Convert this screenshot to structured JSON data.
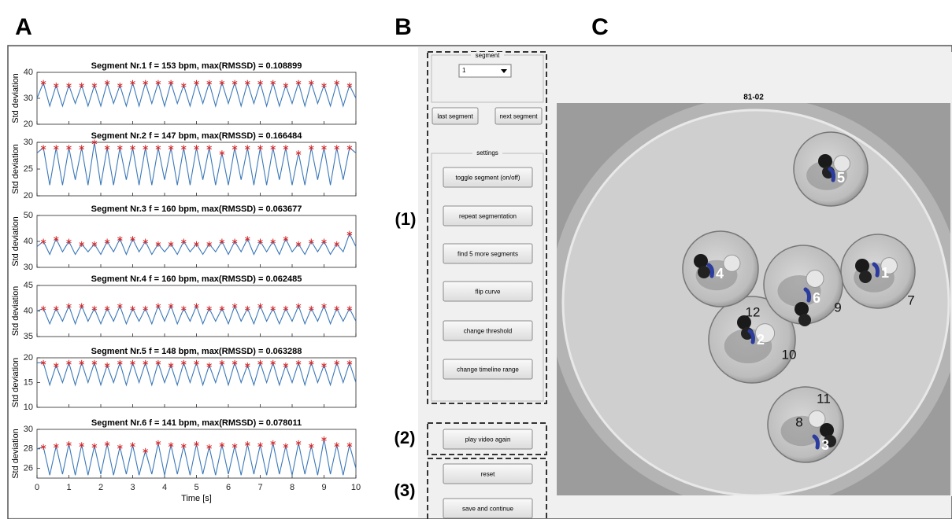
{
  "panel_labels": [
    "A",
    "B",
    "C"
  ],
  "chart_data": [
    {
      "type": "line",
      "title": "Segment Nr.1  f = 153 bpm, max(RMSSD) = 0.108899",
      "ylabel": "Std deviation",
      "color": "#3b78b8",
      "marker_color": "#d62728",
      "xlim": [
        0,
        10
      ],
      "xticks": [
        0,
        1,
        2,
        3,
        4,
        5,
        6,
        7,
        8,
        9,
        10
      ],
      "ylim": [
        20,
        40
      ],
      "yticks": [
        20,
        30,
        40
      ],
      "x": [
        0,
        0.2,
        0.4,
        0.6,
        0.8,
        1,
        1.2,
        1.4,
        1.6,
        1.8,
        2,
        2.2,
        2.4,
        2.6,
        2.8,
        3,
        3.2,
        3.4,
        3.6,
        3.8,
        4,
        4.2,
        4.4,
        4.6,
        4.8,
        5,
        5.2,
        5.4,
        5.6,
        5.8,
        6,
        6.2,
        6.4,
        6.6,
        6.8,
        7,
        7.2,
        7.4,
        7.6,
        7.8,
        8,
        8.2,
        8.4,
        8.6,
        8.8,
        9,
        9.2,
        9.4,
        9.6,
        9.8,
        10
      ],
      "values": [
        30,
        36,
        27,
        35,
        27,
        35,
        28,
        35,
        27,
        35,
        27,
        36,
        28,
        35,
        27,
        36,
        27,
        36,
        28,
        36,
        27,
        36,
        28,
        35,
        27,
        36,
        28,
        36,
        27,
        36,
        28,
        36,
        27,
        36,
        28,
        36,
        27,
        36,
        27,
        35,
        28,
        36,
        27,
        36,
        28,
        35,
        27,
        36,
        27,
        35,
        30
      ]
    },
    {
      "type": "line",
      "title": "Segment Nr.2  f = 147 bpm, max(RMSSD) = 0.166484",
      "ylabel": "Std deviation",
      "color": "#3b78b8",
      "marker_color": "#d62728",
      "xlim": [
        0,
        10
      ],
      "xticks": [
        0,
        1,
        2,
        3,
        4,
        5,
        6,
        7,
        8,
        9,
        10
      ],
      "ylim": [
        20,
        30
      ],
      "yticks": [
        20,
        25,
        30
      ],
      "x": [
        0,
        0.2,
        0.4,
        0.6,
        0.8,
        1,
        1.2,
        1.4,
        1.6,
        1.8,
        2,
        2.2,
        2.4,
        2.6,
        2.8,
        3,
        3.2,
        3.4,
        3.6,
        3.8,
        4,
        4.2,
        4.4,
        4.6,
        4.8,
        5,
        5.2,
        5.4,
        5.6,
        5.8,
        6,
        6.2,
        6.4,
        6.6,
        6.8,
        7,
        7.2,
        7.4,
        7.6,
        7.8,
        8,
        8.2,
        8.4,
        8.6,
        8.8,
        9,
        9.2,
        9.4,
        9.6,
        9.8,
        10
      ],
      "values": [
        28,
        29,
        22,
        29,
        22,
        29,
        23,
        29,
        22,
        30,
        22,
        29,
        22,
        29,
        23,
        29,
        22,
        29,
        22,
        29,
        23,
        29,
        22,
        29,
        22,
        29,
        23,
        29,
        22,
        28,
        22,
        29,
        23,
        29,
        22,
        29,
        22,
        29,
        23,
        29,
        22,
        28,
        22,
        29,
        23,
        29,
        22,
        29,
        23,
        29,
        28
      ]
    },
    {
      "type": "line",
      "title": "Segment Nr.3  f = 160 bpm, max(RMSSD) = 0.063677",
      "ylabel": "Std deviation",
      "color": "#3b78b8",
      "marker_color": "#d62728",
      "xlim": [
        0,
        10
      ],
      "xticks": [
        0,
        1,
        2,
        3,
        4,
        5,
        6,
        7,
        8,
        9,
        10
      ],
      "ylim": [
        30,
        50
      ],
      "yticks": [
        30,
        40,
        50
      ],
      "x": [
        0,
        0.2,
        0.4,
        0.6,
        0.8,
        1,
        1.2,
        1.4,
        1.6,
        1.8,
        2,
        2.2,
        2.4,
        2.6,
        2.8,
        3,
        3.2,
        3.4,
        3.6,
        3.8,
        4,
        4.2,
        4.4,
        4.6,
        4.8,
        5,
        5.2,
        5.4,
        5.6,
        5.8,
        6,
        6.2,
        6.4,
        6.6,
        6.8,
        7,
        7.2,
        7.4,
        7.6,
        7.8,
        8,
        8.2,
        8.4,
        8.6,
        8.8,
        9,
        9.2,
        9.4,
        9.6,
        9.8,
        10
      ],
      "values": [
        38,
        40,
        35,
        41,
        36,
        40,
        35,
        39,
        36,
        39,
        35,
        40,
        36,
        41,
        35,
        41,
        36,
        40,
        35,
        39,
        36,
        39,
        35,
        40,
        36,
        39,
        35,
        39,
        36,
        40,
        35,
        40,
        36,
        41,
        35,
        40,
        36,
        40,
        35,
        41,
        36,
        39,
        35,
        40,
        36,
        40,
        35,
        39,
        36,
        43,
        38
      ]
    },
    {
      "type": "line",
      "title": "Segment Nr.4  f = 160 bpm, max(RMSSD) = 0.062485",
      "ylabel": "Std deviation",
      "color": "#3b78b8",
      "marker_color": "#d62728",
      "xlim": [
        0,
        10
      ],
      "xticks": [
        0,
        1,
        2,
        3,
        4,
        5,
        6,
        7,
        8,
        9,
        10
      ],
      "ylim": [
        35,
        45
      ],
      "yticks": [
        35,
        40,
        45
      ],
      "x": [
        0,
        0.2,
        0.4,
        0.6,
        0.8,
        1,
        1.2,
        1.4,
        1.6,
        1.8,
        2,
        2.2,
        2.4,
        2.6,
        2.8,
        3,
        3.2,
        3.4,
        3.6,
        3.8,
        4,
        4.2,
        4.4,
        4.6,
        4.8,
        5,
        5.2,
        5.4,
        5.6,
        5.8,
        6,
        6.2,
        6.4,
        6.6,
        6.8,
        7,
        7.2,
        7.4,
        7.6,
        7.8,
        8,
        8.2,
        8.4,
        8.6,
        8.8,
        9,
        9.2,
        9.4,
        9.6,
        9.8,
        10
      ],
      "values": [
        40,
        40.5,
        37.5,
        40.5,
        38,
        41,
        37.5,
        41,
        38,
        40.5,
        37.5,
        40.5,
        38,
        41,
        37.5,
        40.5,
        38,
        40.5,
        37.5,
        41,
        38,
        41,
        37.5,
        40.5,
        38,
        41,
        37.5,
        40.5,
        38,
        40.5,
        37.5,
        41,
        38,
        40.5,
        37.5,
        41,
        38,
        40.5,
        37.5,
        40.5,
        38,
        41,
        37.5,
        40.5,
        38,
        41,
        37.5,
        40.5,
        38,
        40.5,
        38
      ]
    },
    {
      "type": "line",
      "title": "Segment Nr.5  f = 148 bpm, max(RMSSD) = 0.063288",
      "ylabel": "Std deviation",
      "color": "#3b78b8",
      "marker_color": "#d62728",
      "xlim": [
        0,
        10
      ],
      "xticks": [
        0,
        1,
        2,
        3,
        4,
        5,
        6,
        7,
        8,
        9,
        10
      ],
      "ylim": [
        10,
        20
      ],
      "yticks": [
        10,
        15,
        20
      ],
      "x": [
        0,
        0.2,
        0.4,
        0.6,
        0.8,
        1,
        1.2,
        1.4,
        1.6,
        1.8,
        2,
        2.2,
        2.4,
        2.6,
        2.8,
        3,
        3.2,
        3.4,
        3.6,
        3.8,
        4,
        4.2,
        4.4,
        4.6,
        4.8,
        5,
        5.2,
        5.4,
        5.6,
        5.8,
        6,
        6.2,
        6.4,
        6.6,
        6.8,
        7,
        7.2,
        7.4,
        7.6,
        7.8,
        8,
        8.2,
        8.4,
        8.6,
        8.8,
        9,
        9.2,
        9.4,
        9.6,
        9.8,
        10
      ],
      "values": [
        19,
        19,
        14.5,
        18.5,
        15,
        19,
        14.5,
        19,
        15,
        19,
        14.5,
        18.5,
        15,
        19,
        14.5,
        19,
        15,
        19,
        14.5,
        19,
        15,
        18.5,
        14.5,
        19,
        15,
        19,
        14.5,
        18.5,
        15,
        19,
        14.5,
        19,
        15,
        18.5,
        14.5,
        19,
        15,
        19,
        14.5,
        18.5,
        15,
        19,
        14.5,
        19,
        15,
        18.5,
        14.5,
        19,
        15,
        19,
        15
      ]
    },
    {
      "type": "line",
      "title": "Segment Nr.6  f = 141 bpm, max(RMSSD) = 0.078011",
      "ylabel": "Std deviation",
      "xlabel": "Time [s]",
      "color": "#3b78b8",
      "marker_color": "#d62728",
      "xlim": [
        0,
        10
      ],
      "xticks": [
        0,
        1,
        2,
        3,
        4,
        5,
        6,
        7,
        8,
        9,
        10
      ],
      "ylim": [
        25,
        30
      ],
      "yticks": [
        26,
        28,
        30
      ],
      "x": [
        0,
        0.2,
        0.4,
        0.6,
        0.8,
        1,
        1.2,
        1.4,
        1.6,
        1.8,
        2,
        2.2,
        2.4,
        2.6,
        2.8,
        3,
        3.2,
        3.4,
        3.6,
        3.8,
        4,
        4.2,
        4.4,
        4.6,
        4.8,
        5,
        5.2,
        5.4,
        5.6,
        5.8,
        6,
        6.2,
        6.4,
        6.6,
        6.8,
        7,
        7.2,
        7.4,
        7.6,
        7.8,
        8,
        8.2,
        8.4,
        8.6,
        8.8,
        9,
        9.2,
        9.4,
        9.6,
        9.8,
        10
      ],
      "values": [
        28,
        28.2,
        25.3,
        28.3,
        25.4,
        28.5,
        25.3,
        28.4,
        25.3,
        28.3,
        25.4,
        28.5,
        25.3,
        28.2,
        25.4,
        28.4,
        25.3,
        27.8,
        25.4,
        28.6,
        25.3,
        28.4,
        25.4,
        28.3,
        25.3,
        28.5,
        25.4,
        28.2,
        25.3,
        28.4,
        25.4,
        28.3,
        25.3,
        28.5,
        25.4,
        28.4,
        25.3,
        28.6,
        25.4,
        28.3,
        25.3,
        28.6,
        25.4,
        28.3,
        25.3,
        29.0,
        25.4,
        28.4,
        25.3,
        28.4,
        26
      ]
    }
  ],
  "controls": {
    "segment_label": "segment",
    "segment_value": "1",
    "last": "last segment",
    "next": "next segment",
    "settings_label": "settings",
    "settings": [
      "toggle segment (on/off)",
      "repeat segmentation",
      "find 5 more segments",
      "flip curve",
      "change threshold",
      "change timeline range"
    ],
    "group_labels": [
      "(1)",
      "(2)",
      "(3)"
    ],
    "play": "play video again",
    "reset": "reset",
    "save": "save and continue"
  },
  "image": {
    "title": "81-02",
    "fish_labels": [
      "1",
      "2",
      "3",
      "4",
      "5",
      "6"
    ],
    "well_labels": [
      "7",
      "8",
      "9",
      "10",
      "11",
      "12"
    ]
  }
}
